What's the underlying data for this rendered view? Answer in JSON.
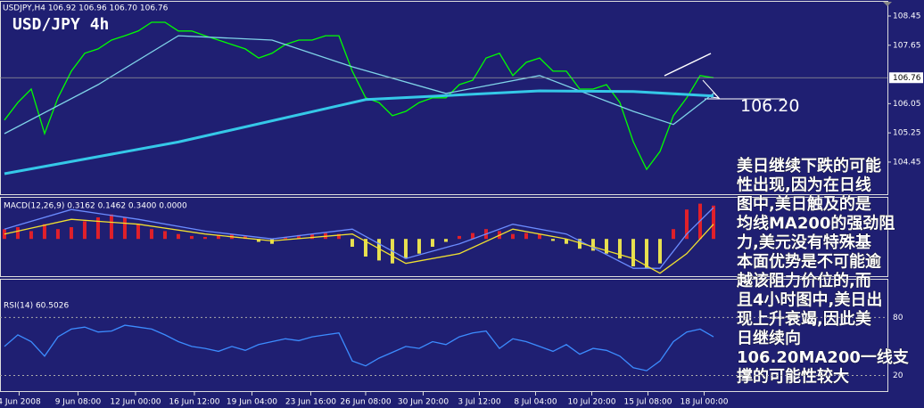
{
  "chart_data": [
    {
      "type": "line",
      "title": "USD/JPY 4h",
      "subtitle": "USDJPY,H4  106.92 106.96 106.70 106.76",
      "xlim": [
        -0.33,
        66
      ],
      "xticks": [
        {
          "value": 1.1,
          "label": "4 Jun 2008"
        },
        {
          "value": 5.5,
          "label": "9 Jun 08:00"
        },
        {
          "value": 9.8,
          "label": "12 Jun 00:00"
        },
        {
          "value": 14.2,
          "label": "16 Jun 12:00"
        },
        {
          "value": 18.5,
          "label": "19 Jun 04:00"
        },
        {
          "value": 22.9,
          "label": "23 Jun 16:00"
        },
        {
          "value": 27,
          "label": "26 Jun 08:00"
        },
        {
          "value": 31.3,
          "label": "30 Jun 20:00"
        },
        {
          "value": 35.5,
          "label": "3 Jul 12:00"
        },
        {
          "value": 39.7,
          "label": "8 Jul 04:00"
        },
        {
          "value": 43.9,
          "label": "10 Jul 20:00"
        },
        {
          "value": 48.1,
          "label": "15 Jul 08:00"
        },
        {
          "value": 52.3,
          "label": "18 Jul 00:00"
        }
      ],
      "ylim": [
        103.57,
        108.84
      ],
      "yticks": [
        108.45,
        107.65,
        106.05,
        105.25,
        104.45
      ],
      "last_price": 106.76,
      "series": [
        {
          "color": "#00ff00",
          "values": [
            105.6,
            106.08,
            106.45,
            105.23,
            106.21,
            106.94,
            107.43,
            107.55,
            107.79,
            107.91,
            108.04,
            108.28,
            108.28,
            108.04,
            108.04,
            107.91,
            107.79,
            107.67,
            107.55,
            107.3,
            107.43,
            107.67,
            107.79,
            107.79,
            107.91,
            107.91,
            106.94,
            106.21,
            106.08,
            105.72,
            105.84,
            106.08,
            106.21,
            106.21,
            106.57,
            106.69,
            107.3,
            107.43,
            106.82,
            107.18,
            107.3,
            106.94,
            106.94,
            106.45,
            106.45,
            106.57,
            106.08,
            105.01,
            104.25,
            104.74,
            105.72,
            106.21,
            106.82,
            106.76
          ]
        },
        {
          "color": "#7fd3e8",
          "x": [
            0,
            7,
            13,
            20,
            26,
            33,
            40,
            47,
            50,
            53
          ],
          "values": [
            105.23,
            106.57,
            107.91,
            107.79,
            107.06,
            106.33,
            106.82,
            105.84,
            105.48,
            106.33
          ]
        },
        {
          "color": "#35c8e8",
          "x": [
            0,
            13,
            27,
            40,
            47,
            53
          ],
          "values": [
            104.13,
            105.0,
            106.16,
            106.4,
            106.38,
            106.26
          ]
        }
      ],
      "annotation": "106.20",
      "comment": [
        "美日继续下跌的可能",
        "性出现,因为在日线",
        "图中,美日触及的是",
        "均线MA200的强劲阻",
        "力,美元没有特殊基",
        "本面优势是不可能逾",
        "越该阻力价位的,而",
        "且4小时图中,美日出",
        "现上升衰竭,因此美",
        "日继续向",
        "106.20MA200一线支",
        "撑的可能性较大"
      ]
    },
    {
      "type": "bar",
      "title": "MACD(12,26,9) 0.3162 0.1462 0.3400 0.0000",
      "ylim": [
        -0.38,
        0.42
      ],
      "pos_color": "#e0202a",
      "neg_color": "#e8e050",
      "values": [
        0.1,
        0.12,
        0.08,
        0.15,
        0.1,
        0.12,
        0.18,
        0.22,
        0.25,
        0.22,
        0.15,
        0.1,
        0.08,
        0.05,
        0.03,
        0.02,
        0.04,
        0.05,
        0.03,
        -0.03,
        -0.05,
        0.02,
        0.04,
        0.05,
        0.06,
        0.05,
        -0.08,
        -0.18,
        -0.22,
        -0.25,
        -0.2,
        -0.15,
        -0.08,
        -0.03,
        0.03,
        0.06,
        0.1,
        0.08,
        0.05,
        0.06,
        0.05,
        -0.02,
        -0.05,
        -0.1,
        -0.12,
        -0.15,
        -0.2,
        -0.28,
        -0.3,
        -0.25,
        0.1,
        0.3,
        0.36,
        0.34
      ],
      "series": [
        {
          "color": "#6b8cff",
          "x": [
            0,
            5,
            10,
            15,
            20,
            26,
            30,
            34,
            38,
            42,
            47,
            49,
            51,
            53
          ],
          "values": [
            0.1,
            0.3,
            0.2,
            0.08,
            0.0,
            0.1,
            -0.2,
            -0.05,
            0.15,
            0.05,
            -0.3,
            -0.3,
            0.05,
            0.32
          ]
        },
        {
          "color": "#f0e030",
          "x": [
            0,
            5,
            10,
            15,
            20,
            26,
            30,
            34,
            38,
            42,
            47,
            49,
            51,
            53
          ],
          "values": [
            0.05,
            0.2,
            0.15,
            0.05,
            -0.02,
            0.05,
            -0.25,
            -0.15,
            0.1,
            0.0,
            -0.2,
            -0.35,
            -0.15,
            0.15
          ]
        }
      ]
    },
    {
      "type": "line",
      "title": "RSI(14) 60.5026",
      "ylim": [
        3,
        119
      ],
      "yticks": [
        80,
        20
      ],
      "series": [
        {
          "color": "#3c8cff",
          "values": [
            50,
            62,
            55,
            40,
            60,
            68,
            70,
            65,
            66,
            72,
            70,
            68,
            62,
            55,
            50,
            48,
            45,
            50,
            46,
            52,
            55,
            58,
            56,
            60,
            62,
            64,
            35,
            30,
            38,
            44,
            50,
            48,
            55,
            52,
            60,
            64,
            66,
            48,
            58,
            55,
            50,
            45,
            52,
            42,
            48,
            46,
            40,
            28,
            25,
            35,
            55,
            65,
            68,
            60
          ]
        }
      ]
    }
  ]
}
